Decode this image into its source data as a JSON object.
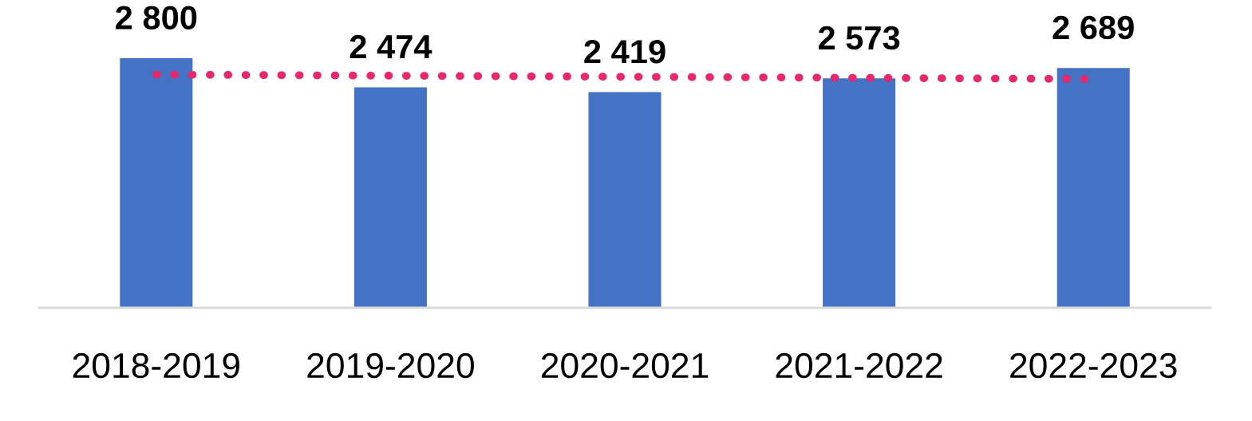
{
  "chart_data": {
    "type": "bar",
    "categories": [
      "2018-2019",
      "2019-2020",
      "2020-2021",
      "2021-2022",
      "2022-2023"
    ],
    "series": [
      {
        "color": "#4472c4",
        "values": [
          2800,
          2474,
          2419,
          2573,
          2689
        ],
        "value_labels": [
          "2 800",
          "2 474",
          "2 419",
          "2 573",
          "2 689"
        ]
      },
      {
        "type": "line",
        "color": "#e6286e",
        "line_style": "dotted",
        "values": [
          2616,
          2603,
          2591,
          2579,
          2566
        ]
      }
    ],
    "grid": false,
    "legend": false,
    "tick_labels": "x"
  }
}
